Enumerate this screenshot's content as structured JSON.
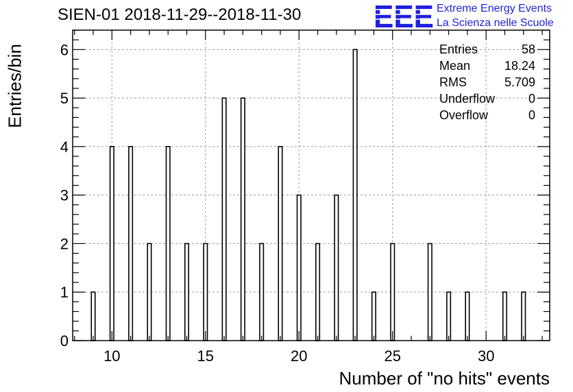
{
  "title": "SIEN-01 2018-11-29--2018-11-30",
  "logo": {
    "mark": "EEE",
    "line1": "Extreme Energy Events",
    "line2": "La Scienza nelle Scuole",
    "color": "#1f1fe0"
  },
  "stats": [
    {
      "label": "Entries",
      "value": "58"
    },
    {
      "label": "Mean",
      "value": "18.24"
    },
    {
      "label": "RMS",
      "value": "5.709"
    },
    {
      "label": "Underflow",
      "value": "0"
    },
    {
      "label": "Overflow",
      "value": "0"
    }
  ],
  "chart_data": {
    "type": "bar",
    "style": "histogram",
    "xlabel": "Number of \"no hits\" events",
    "ylabel": "Entries/bin",
    "xlim": [
      7.9,
      33.4
    ],
    "ylim": [
      0,
      6.4
    ],
    "x_ticks": [
      10,
      15,
      20,
      25,
      30
    ],
    "y_ticks": [
      0,
      1,
      2,
      3,
      4,
      5,
      6
    ],
    "grid": true,
    "x": [
      9,
      10,
      11,
      12,
      13,
      14,
      15,
      16,
      17,
      18,
      19,
      20,
      21,
      22,
      23,
      24,
      25,
      27,
      28,
      29,
      31,
      32
    ],
    "values": [
      1,
      4,
      4,
      2,
      4,
      2,
      2,
      5,
      5,
      2,
      4,
      3,
      2,
      3,
      6,
      1,
      2,
      2,
      1,
      1,
      1,
      1
    ]
  }
}
